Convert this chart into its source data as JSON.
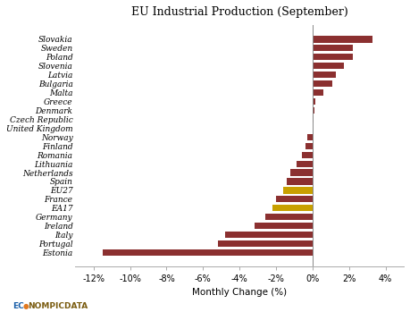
{
  "title": "EU Industrial Production (September)",
  "xlabel": "Monthly Change (%)",
  "categories": [
    "Slovakia",
    "Sweden",
    "Poland",
    "Slovenia",
    "Latvia",
    "Bulgaria",
    "Malta",
    "Greece",
    "Denmark",
    "Czech Republic",
    "United Kingdom",
    "Norway",
    "Finland",
    "Romania",
    "Lithuania",
    "Netherlands",
    "Spain",
    "EU27",
    "France",
    "EA17",
    "Germany",
    "Ireland",
    "Italy",
    "Portugal",
    "Estonia"
  ],
  "values": [
    3.3,
    2.2,
    2.2,
    1.7,
    1.3,
    1.1,
    0.6,
    0.15,
    0.1,
    0.05,
    0.0,
    -0.3,
    -0.4,
    -0.6,
    -0.9,
    -1.2,
    -1.4,
    -1.6,
    -2.0,
    -2.2,
    -2.6,
    -3.2,
    -4.8,
    -5.2,
    -11.5
  ],
  "bar_colors": [
    "#8b3030",
    "#8b3030",
    "#8b3030",
    "#8b3030",
    "#8b3030",
    "#8b3030",
    "#8b3030",
    "#8b3030",
    "#8b3030",
    "#8b3030",
    "#8b3030",
    "#8b3030",
    "#8b3030",
    "#8b3030",
    "#8b3030",
    "#8b3030",
    "#8b3030",
    "#c8a000",
    "#8b3030",
    "#c8a000",
    "#8b3030",
    "#8b3030",
    "#8b3030",
    "#8b3030",
    "#8b3030"
  ],
  "xlim": [
    -13.0,
    5.0
  ],
  "xticks": [
    -12,
    -10,
    -8,
    -6,
    -4,
    -2,
    0,
    2,
    4
  ],
  "xtick_labels": [
    "-12%",
    "-10%",
    "-8%",
    "-6%",
    "-4%",
    "-2%",
    "0%",
    "2%",
    "4%"
  ],
  "background_color": "#ffffff",
  "title_fontsize": 9,
  "axis_fontsize": 7,
  "label_fontsize": 6.5
}
